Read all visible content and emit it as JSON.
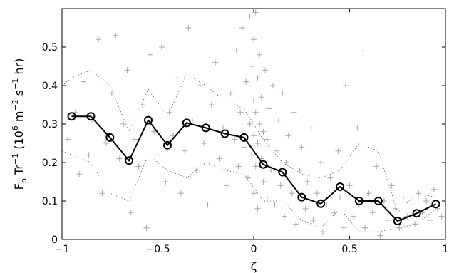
{
  "chart_data": {
    "type": "line",
    "title": "",
    "xlabel": "ζ",
    "ylabel": {
      "prefix": "F",
      "prefix_sub": "p",
      "mid": " Tr",
      "mid_sup": "−1",
      "unit_open": " (10",
      "unit_exp1": "6",
      "unit_m": " m",
      "unit_exp2": "−2",
      "unit_s": " s",
      "unit_exp3": "−1",
      "unit_close": " hr)"
    },
    "xlim": [
      -1,
      1
    ],
    "ylim": [
      0,
      0.6
    ],
    "xticks": [
      -1,
      -0.5,
      0,
      0.5,
      1
    ],
    "xtick_labels": [
      "−1",
      "−0.5",
      "0",
      "0.5",
      "1"
    ],
    "yticks": [
      0,
      0.1,
      0.2,
      0.3,
      0.4,
      0.5
    ],
    "ytick_labels": [
      "0",
      "0.1",
      "0.2",
      "0.3",
      "0.4",
      "0.5"
    ],
    "grid": false,
    "colors": {
      "mean": "#000000",
      "scatter": "#a8a8a8",
      "envelope": "#333333"
    },
    "mean_series": {
      "x": [
        -0.95,
        -0.85,
        -0.75,
        -0.65,
        -0.55,
        -0.45,
        -0.35,
        -0.25,
        -0.15,
        -0.05,
        0.05,
        0.15,
        0.25,
        0.35,
        0.45,
        0.55,
        0.65,
        0.75,
        0.85,
        0.95
      ],
      "y": [
        0.32,
        0.32,
        0.265,
        0.205,
        0.31,
        0.245,
        0.303,
        0.29,
        0.275,
        0.265,
        0.195,
        0.175,
        0.11,
        0.093,
        0.137,
        0.1,
        0.1,
        0.048,
        0.068,
        0.092
      ]
    },
    "upper_envelope": {
      "x": [
        -1.0,
        -0.95,
        -0.85,
        -0.75,
        -0.65,
        -0.55,
        -0.45,
        -0.35,
        -0.25,
        -0.15,
        -0.05,
        0.05,
        0.15,
        0.25,
        0.35,
        0.45,
        0.55,
        0.65,
        0.75,
        0.85,
        0.95
      ],
      "y": [
        0.4,
        0.42,
        0.44,
        0.4,
        0.28,
        0.39,
        0.32,
        0.43,
        0.4,
        0.36,
        0.34,
        0.26,
        0.2,
        0.17,
        0.16,
        0.18,
        0.25,
        0.23,
        0.07,
        0.12,
        0.11
      ]
    },
    "lower_envelope": {
      "x": [
        -1.0,
        -0.95,
        -0.85,
        -0.75,
        -0.65,
        -0.55,
        -0.45,
        -0.35,
        -0.25,
        -0.15,
        -0.05,
        0.05,
        0.15,
        0.25,
        0.35,
        0.45,
        0.55,
        0.65,
        0.75,
        0.85,
        0.95
      ],
      "y": [
        0.23,
        0.22,
        0.2,
        0.12,
        0.1,
        0.22,
        0.18,
        0.16,
        0.2,
        0.18,
        0.17,
        0.1,
        0.1,
        0.05,
        0.03,
        0.08,
        0.02,
        0.02,
        0.03,
        0.04,
        0.08
      ]
    },
    "scatter_points": [
      [
        -0.97,
        0.26
      ],
      [
        -0.93,
        0.33
      ],
      [
        -0.91,
        0.17
      ],
      [
        -0.89,
        0.41
      ],
      [
        -0.86,
        0.22
      ],
      [
        -0.84,
        0.31
      ],
      [
        -0.81,
        0.52
      ],
      [
        -0.79,
        0.12
      ],
      [
        -0.77,
        0.25
      ],
      [
        -0.74,
        0.38
      ],
      [
        -0.72,
        0.53
      ],
      [
        -0.7,
        0.21
      ],
      [
        -0.68,
        0.3
      ],
      [
        -0.66,
        0.44
      ],
      [
        -0.64,
        0.07
      ],
      [
        -0.62,
        0.26
      ],
      [
        -0.6,
        0.19
      ],
      [
        -0.58,
        0.35
      ],
      [
        -0.56,
        0.03
      ],
      [
        -0.54,
        0.48
      ],
      [
        -0.52,
        0.28
      ],
      [
        -0.5,
        0.22
      ],
      [
        -0.48,
        0.5
      ],
      [
        -0.46,
        0.15
      ],
      [
        -0.44,
        0.33
      ],
      [
        -0.42,
        0.27
      ],
      [
        -0.4,
        0.42
      ],
      [
        -0.38,
        0.12
      ],
      [
        -0.36,
        0.23
      ],
      [
        -0.34,
        0.55
      ],
      [
        -0.32,
        0.31
      ],
      [
        -0.3,
        0.18
      ],
      [
        -0.28,
        0.4
      ],
      [
        -0.26,
        0.25
      ],
      [
        -0.24,
        0.09
      ],
      [
        -0.22,
        0.35
      ],
      [
        -0.2,
        0.46
      ],
      [
        -0.18,
        0.21
      ],
      [
        -0.16,
        0.29
      ],
      [
        -0.14,
        0.14
      ],
      [
        -0.12,
        0.38
      ],
      [
        -0.1,
        0.26
      ],
      [
        -0.09,
        0.49
      ],
      [
        -0.08,
        0.19
      ],
      [
        -0.07,
        0.33
      ],
      [
        -0.06,
        0.55
      ],
      [
        -0.05,
        0.24
      ],
      [
        -0.04,
        0.41
      ],
      [
        -0.03,
        0.16
      ],
      [
        -0.02,
        0.3
      ],
      [
        -0.02,
        0.58
      ],
      [
        -0.01,
        0.22
      ],
      [
        -0.01,
        0.45
      ],
      [
        0.0,
        0.27
      ],
      [
        0.0,
        0.36
      ],
      [
        0.0,
        0.12
      ],
      [
        0.0,
        0.52
      ],
      [
        0.01,
        0.19
      ],
      [
        0.01,
        0.33
      ],
      [
        0.01,
        0.59
      ],
      [
        0.02,
        0.25
      ],
      [
        0.02,
        0.42
      ],
      [
        0.02,
        0.08
      ],
      [
        0.03,
        0.3
      ],
      [
        0.03,
        0.48
      ],
      [
        0.04,
        0.21
      ],
      [
        0.04,
        0.37
      ],
      [
        0.05,
        0.15
      ],
      [
        0.05,
        0.28
      ],
      [
        0.06,
        0.44
      ],
      [
        0.07,
        0.11
      ],
      [
        0.07,
        0.26
      ],
      [
        0.08,
        0.34
      ],
      [
        0.09,
        0.18
      ],
      [
        0.1,
        0.4
      ],
      [
        0.11,
        0.09
      ],
      [
        0.12,
        0.23
      ],
      [
        0.13,
        0.31
      ],
      [
        0.14,
        0.14
      ],
      [
        0.15,
        0.38
      ],
      [
        0.16,
        0.06
      ],
      [
        0.17,
        0.2
      ],
      [
        0.18,
        0.27
      ],
      [
        0.2,
        0.12
      ],
      [
        0.21,
        0.33
      ],
      [
        0.22,
        0.04
      ],
      [
        0.24,
        0.18
      ],
      [
        0.25,
        0.24
      ],
      [
        0.27,
        0.08
      ],
      [
        0.28,
        0.15
      ],
      [
        0.3,
        0.29
      ],
      [
        0.31,
        0.05
      ],
      [
        0.33,
        0.12
      ],
      [
        0.35,
        0.2
      ],
      [
        0.36,
        0.02
      ],
      [
        0.38,
        0.09
      ],
      [
        0.4,
        0.16
      ],
      [
        0.42,
        0.07
      ],
      [
        0.44,
        0.23
      ],
      [
        0.45,
        0.11
      ],
      [
        0.47,
        0.03
      ],
      [
        0.48,
        0.4
      ],
      [
        0.5,
        0.14
      ],
      [
        0.52,
        0.06
      ],
      [
        0.54,
        0.29
      ],
      [
        0.55,
        0.09
      ],
      [
        0.57,
        0.49
      ],
      [
        0.58,
        0.03
      ],
      [
        0.6,
        0.12
      ],
      [
        0.62,
        0.07
      ],
      [
        0.64,
        0.19
      ],
      [
        0.66,
        0.01
      ],
      [
        0.68,
        0.1
      ],
      [
        0.7,
        0.05
      ],
      [
        0.72,
        0.14
      ],
      [
        0.74,
        0.08
      ],
      [
        0.76,
        0.03
      ],
      [
        0.78,
        0.11
      ],
      [
        0.8,
        0.06
      ],
      [
        0.82,
        0.09
      ],
      [
        0.84,
        0.04
      ],
      [
        0.86,
        0.12
      ],
      [
        0.88,
        0.07
      ],
      [
        0.9,
        0.1
      ],
      [
        0.92,
        0.05
      ],
      [
        0.94,
        0.13
      ],
      [
        0.96,
        0.08
      ],
      [
        0.98,
        0.06
      ]
    ]
  }
}
